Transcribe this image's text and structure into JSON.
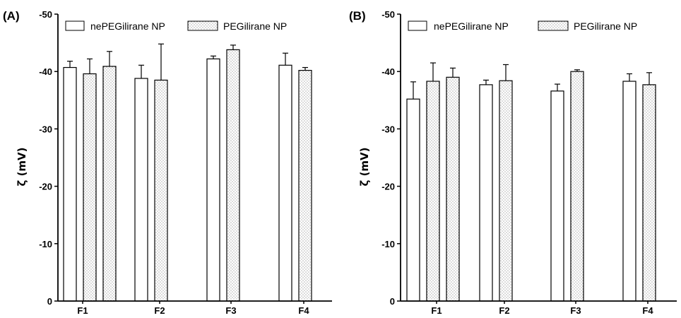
{
  "chart_data": [
    {
      "type": "bar",
      "panel_label": "(A)",
      "ylabel": "ζ (mV)",
      "ylim": [
        0,
        -50
      ],
      "yticks": [
        "0",
        "-10",
        "-20",
        "-30",
        "-40",
        "-50"
      ],
      "categories": [
        "F1",
        "F2",
        "F3",
        "F4"
      ],
      "legend": {
        "position": "top"
      },
      "series": [
        {
          "name": "nePEGilirane NP",
          "pattern": "open",
          "values": [
            [
              -40.7
            ],
            [
              -38.8
            ],
            [
              -42.2
            ],
            [
              -41.1
            ]
          ],
          "errors": [
            [
              1.1
            ],
            [
              2.3
            ],
            [
              0.5
            ],
            [
              2.1
            ]
          ]
        },
        {
          "name": "PEGilirane NP",
          "pattern": "dotted",
          "values": [
            [
              -39.6,
              -40.9
            ],
            [
              -38.5
            ],
            [
              -43.8
            ],
            [
              -40.2
            ]
          ],
          "errors": [
            [
              2.6,
              2.6
            ],
            [
              6.3
            ],
            [
              0.8
            ],
            [
              0.5
            ]
          ]
        }
      ],
      "bar_order": [
        [
          "nePEGilirane NP",
          "PEGilirane NP",
          "PEGilirane NP"
        ],
        [
          "nePEGilirane NP",
          "PEGilirane NP"
        ],
        [
          "nePEGilirane NP",
          "PEGilirane NP"
        ],
        [
          "nePEGilirane NP",
          "PEGilirane NP"
        ]
      ]
    },
    {
      "type": "bar",
      "panel_label": "(B)",
      "ylabel": "ζ (mV)",
      "ylim": [
        0,
        -50
      ],
      "yticks": [
        "0",
        "-10",
        "-20",
        "-30",
        "-40",
        "-50"
      ],
      "categories": [
        "F1",
        "F2",
        "F3",
        "F4"
      ],
      "legend": {
        "position": "top"
      },
      "series": [
        {
          "name": "nePEGilirane NP",
          "pattern": "open",
          "values": [
            [
              -35.2
            ],
            [
              -37.7
            ],
            [
              -36.6
            ],
            [
              -38.3
            ]
          ],
          "errors": [
            [
              3.0
            ],
            [
              0.8
            ],
            [
              1.2
            ],
            [
              1.3
            ]
          ]
        },
        {
          "name": "PEGilirane NP",
          "pattern": "dotted",
          "values": [
            [
              -38.3,
              -39.0
            ],
            [
              -38.4
            ],
            [
              -40.0
            ],
            [
              -37.7
            ]
          ],
          "errors": [
            [
              3.2,
              1.6
            ],
            [
              2.8
            ],
            [
              0.3
            ],
            [
              2.1
            ]
          ]
        }
      ],
      "bar_order": [
        [
          "nePEGilirane NP",
          "PEGilirane NP",
          "PEGilirane NP"
        ],
        [
          "nePEGilirane NP",
          "PEGilirane NP"
        ],
        [
          "nePEGilirane NP",
          "PEGilirane NP"
        ],
        [
          "nePEGilirane NP",
          "PEGilirane NP"
        ]
      ]
    }
  ],
  "colors": {
    "bar_fill": "#ffffff",
    "bar_stroke": "#000000",
    "dot": "#555555",
    "axis": "#000000"
  }
}
